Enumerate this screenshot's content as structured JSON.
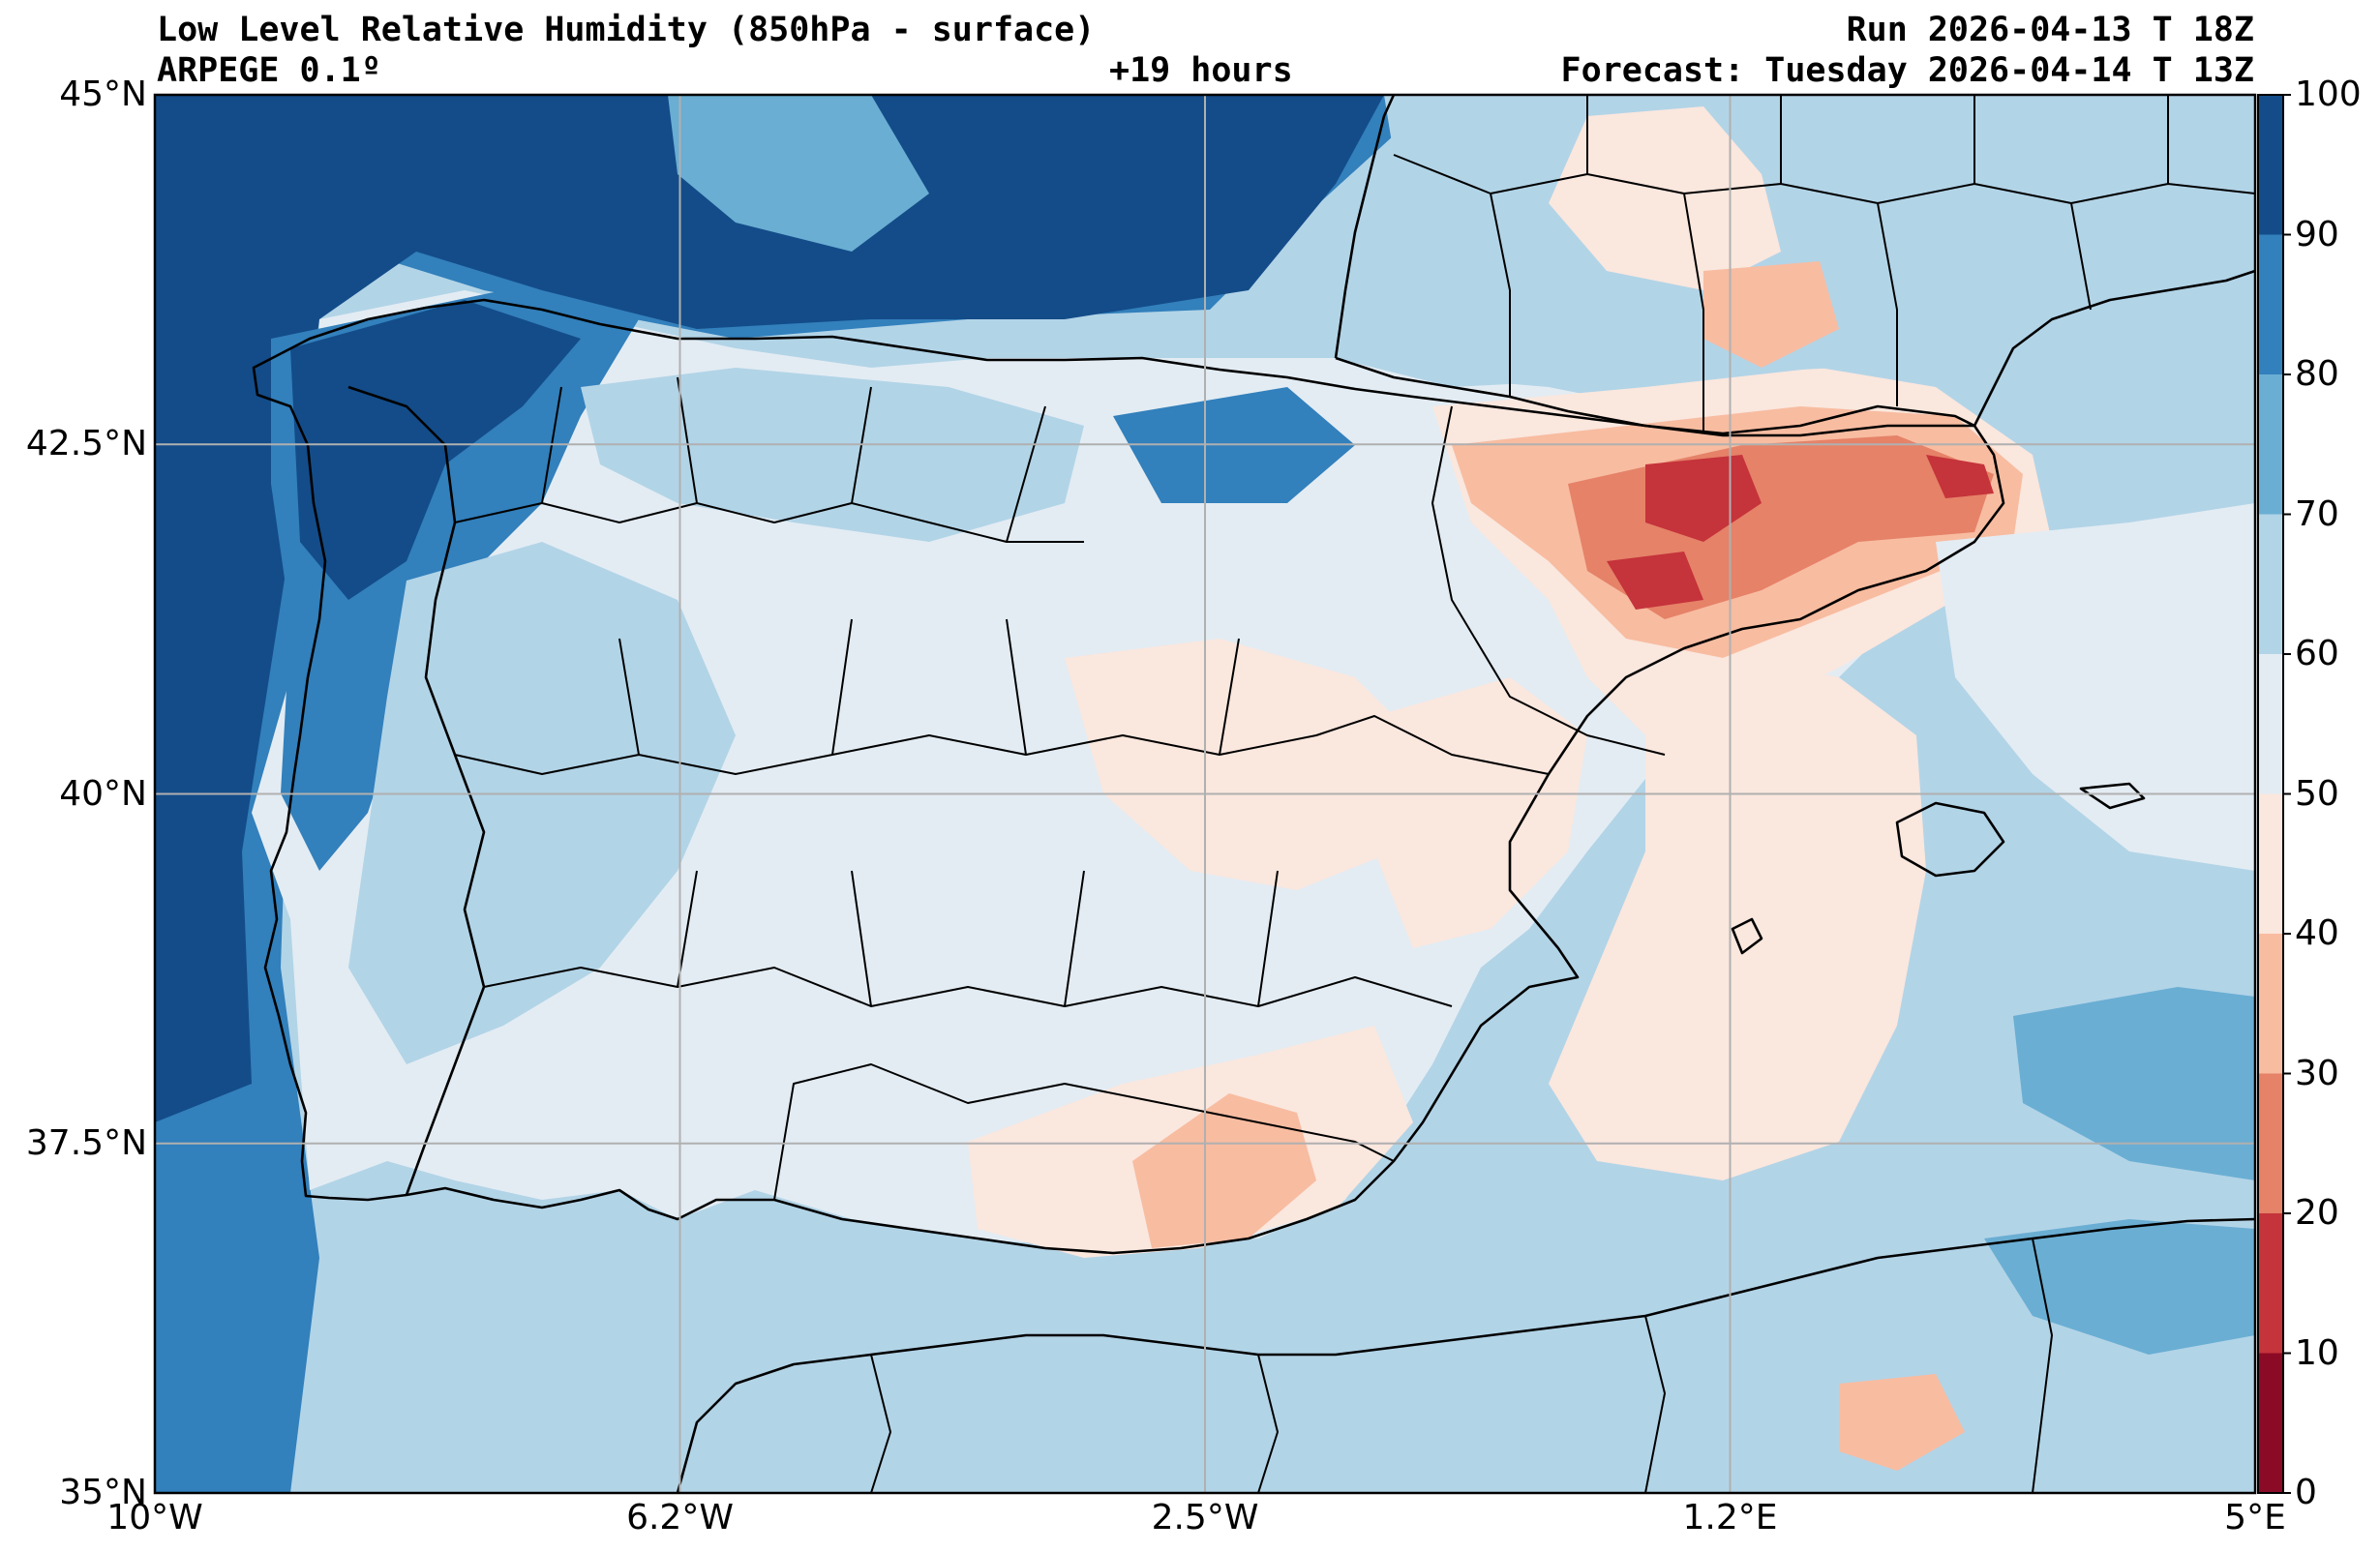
{
  "header": {
    "title": "Low Level Relative Humidity (850hPa - surface)",
    "model": "ARPEGE 0.1º",
    "lead_time": "+19 hours",
    "run": "Run 2026-04-13 T 18Z",
    "forecast": "Forecast: Tuesday 2026-04-14 T 13Z"
  },
  "map": {
    "projection": "plate-carree",
    "lon_range": [
      -10,
      5
    ],
    "lat_range": [
      35,
      45
    ],
    "grid": true,
    "lat_ticks": [
      {
        "value": 45,
        "label": "45°N"
      },
      {
        "value": 42.5,
        "label": "42.5°N"
      },
      {
        "value": 40,
        "label": "40°N"
      },
      {
        "value": 37.5,
        "label": "37.5°N"
      },
      {
        "value": 35,
        "label": "35°N"
      }
    ],
    "lon_ticks": [
      {
        "value": -10,
        "label": "10°W"
      },
      {
        "value": -6.25,
        "label": "6.2°W"
      },
      {
        "value": -2.5,
        "label": "2.5°W"
      },
      {
        "value": 1.25,
        "label": "1.2°E"
      },
      {
        "value": 5,
        "label": "5°E"
      }
    ]
  },
  "colorbar": {
    "levels": [
      0,
      10,
      20,
      30,
      40,
      50,
      60,
      70,
      80,
      90,
      100
    ],
    "colors": [
      "#8b0a25",
      "#c5333b",
      "#e58268",
      "#f8bca1",
      "#fae7de",
      "#e3ecf3",
      "#b2d4e7",
      "#6aaed3",
      "#3280bc",
      "#134c89"
    ],
    "labels": [
      "0",
      "10",
      "20",
      "30",
      "40",
      "50",
      "60",
      "70",
      "80",
      "90",
      "100"
    ]
  },
  "field_colors": {
    "ocean_background": "#b2d4e7",
    "land_base": "#e3ecf3",
    "coastline": "#000000",
    "gridline": "#b0b0b0"
  }
}
